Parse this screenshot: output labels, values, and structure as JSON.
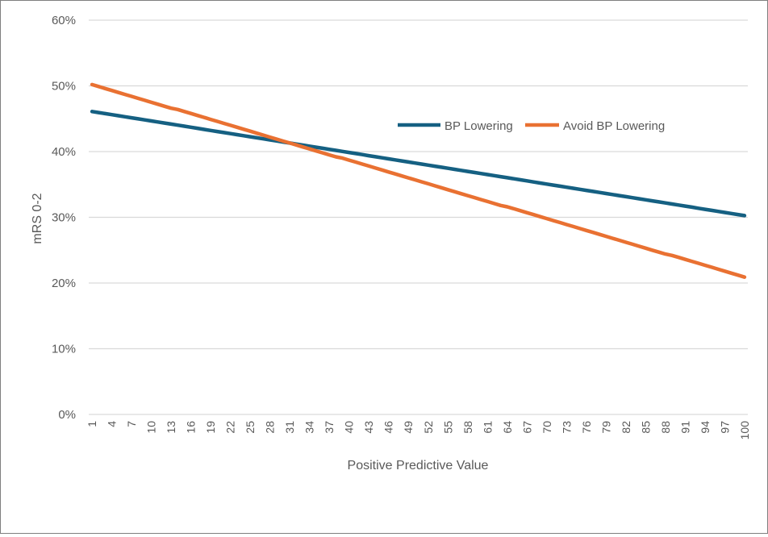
{
  "chart_data": {
    "type": "line",
    "title": "",
    "xlabel": "Positive Predictive Value",
    "ylabel": "mRS 0-2",
    "ylim": [
      0,
      60
    ],
    "yticks": [
      "0%",
      "10%",
      "20%",
      "30%",
      "40%",
      "50%",
      "60%"
    ],
    "ytick_values": [
      0,
      10,
      20,
      30,
      40,
      50,
      60
    ],
    "y_unit": "percent",
    "x_start": 1,
    "x_end": 100,
    "x_tick_step": 3,
    "grid": "horizontal",
    "legend_position": "top-right",
    "series": [
      {
        "name": "BP Lowering",
        "color": "#156082",
        "values": [
          46.1,
          45.94,
          45.78,
          45.62,
          45.46,
          45.3,
          45.14,
          44.98,
          44.82,
          44.66,
          44.5,
          44.34,
          44.18,
          44.02,
          43.86,
          43.7,
          43.54,
          43.38,
          43.22,
          43.06,
          42.9,
          42.74,
          42.58,
          42.42,
          42.26,
          42.1,
          41.94,
          41.78,
          41.62,
          41.46,
          41.3,
          41.14,
          40.98,
          40.82,
          40.66,
          40.5,
          40.34,
          40.18,
          40.02,
          39.86,
          39.7,
          39.54,
          39.38,
          39.22,
          39.06,
          38.9,
          38.74,
          38.58,
          38.42,
          38.26,
          38.1,
          37.94,
          37.78,
          37.62,
          37.46,
          37.3,
          37.14,
          36.98,
          36.82,
          36.66,
          36.5,
          36.34,
          36.18,
          36.02,
          35.86,
          35.7,
          35.54,
          35.38,
          35.22,
          35.06,
          34.9,
          34.74,
          34.58,
          34.42,
          34.26,
          34.1,
          33.94,
          33.78,
          33.62,
          33.46,
          33.3,
          33.14,
          32.98,
          32.82,
          32.66,
          32.5,
          32.34,
          32.18,
          32.02,
          31.86,
          31.7,
          31.54,
          31.38,
          31.22,
          31.06,
          30.9,
          30.74,
          30.58,
          30.42,
          30.26
        ]
      },
      {
        "name": "Avoid BP Lowering",
        "color": "#E97132",
        "values": [
          50.2,
          49.9,
          49.6,
          49.3,
          49.0,
          48.7,
          48.4,
          48.1,
          47.8,
          47.5,
          47.2,
          46.9,
          46.6,
          46.4,
          46.1,
          45.8,
          45.5,
          45.2,
          44.9,
          44.6,
          44.3,
          44.0,
          43.7,
          43.4,
          43.1,
          42.8,
          42.5,
          42.2,
          41.9,
          41.6,
          41.3,
          41.0,
          40.7,
          40.4,
          40.1,
          39.8,
          39.5,
          39.2,
          39.0,
          38.7,
          38.4,
          38.1,
          37.8,
          37.5,
          37.2,
          36.9,
          36.6,
          36.3,
          36.0,
          35.7,
          35.4,
          35.1,
          34.8,
          34.5,
          34.2,
          33.9,
          33.6,
          33.3,
          33.0,
          32.7,
          32.4,
          32.1,
          31.8,
          31.6,
          31.3,
          31.0,
          30.7,
          30.4,
          30.1,
          29.8,
          29.5,
          29.2,
          28.9,
          28.6,
          28.3,
          28.0,
          27.7,
          27.4,
          27.1,
          26.8,
          26.5,
          26.2,
          25.9,
          25.6,
          25.3,
          25.0,
          24.7,
          24.4,
          24.2,
          23.9,
          23.6,
          23.3,
          23.0,
          22.7,
          22.4,
          22.1,
          21.8,
          21.5,
          21.2,
          20.9
        ]
      }
    ]
  }
}
